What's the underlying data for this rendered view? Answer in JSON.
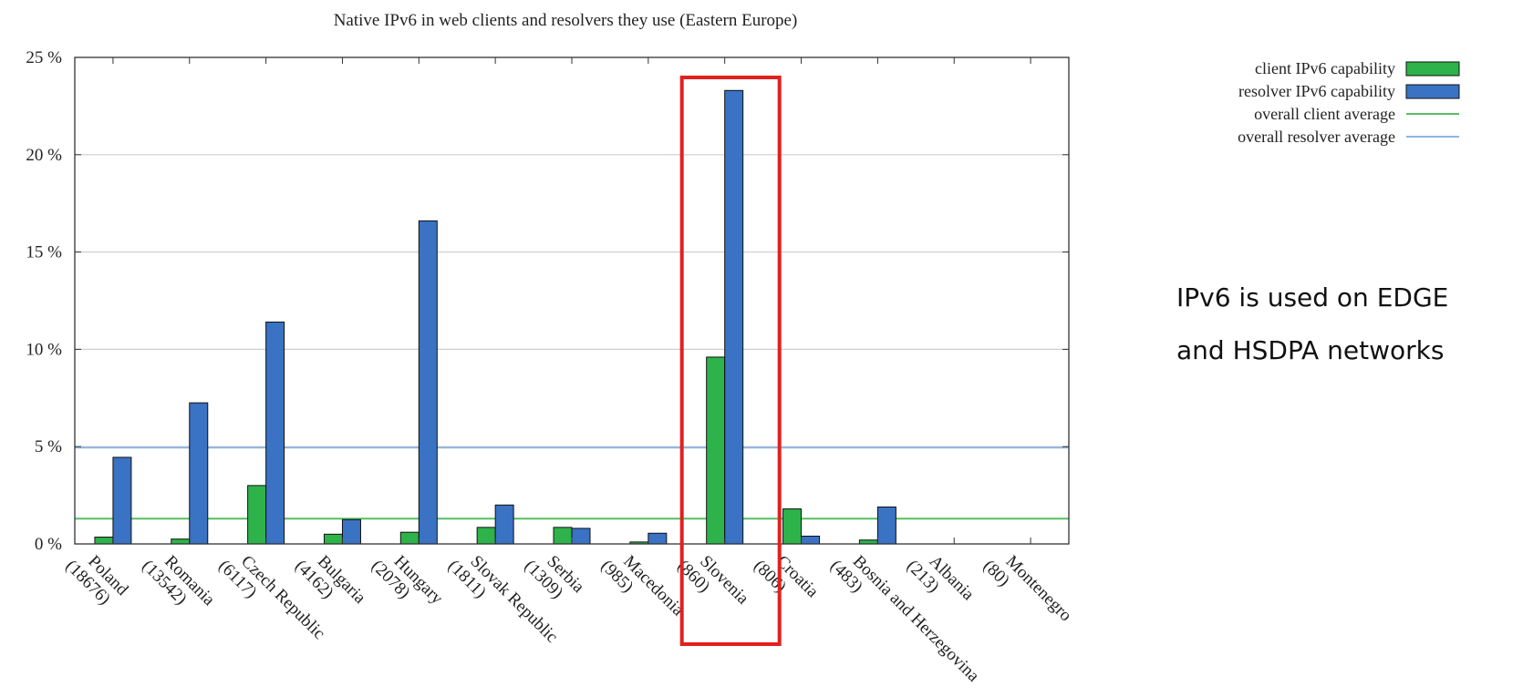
{
  "chart_data": {
    "type": "bar",
    "title": "Native IPv6 in web clients and resolvers they use (Eastern Europe)",
    "xlabel": "",
    "ylabel": "",
    "ylim": [
      0,
      25
    ],
    "yticks": [
      0,
      5,
      10,
      15,
      20,
      25
    ],
    "ytick_labels": [
      "0 %",
      "5 %",
      "10 %",
      "15 %",
      "20 %",
      "25 %"
    ],
    "categories": [
      [
        "Poland",
        "(18676)"
      ],
      [
        "Romania",
        "(13542)"
      ],
      [
        "Czech Republic",
        "(6117)"
      ],
      [
        "Bulgaria",
        "(4162)"
      ],
      [
        "Hungary",
        "(2078)"
      ],
      [
        "Slovak Republic",
        "(1811)"
      ],
      [
        "Serbia",
        "(1309)"
      ],
      [
        "Macedonia",
        "(985)"
      ],
      [
        "Slovenia",
        "(860)"
      ],
      [
        "Croatia",
        "(806)"
      ],
      [
        "Bosnia and Herzegovina",
        "(483)"
      ],
      [
        "Albania",
        "(213)"
      ],
      [
        "Montenegro",
        "(80)"
      ]
    ],
    "series": [
      {
        "name": "client IPv6 capability",
        "color": "#2db34a",
        "values": [
          0.35,
          0.25,
          3.0,
          0.5,
          0.6,
          0.85,
          0.85,
          0.1,
          9.6,
          1.8,
          0.2,
          0,
          0
        ]
      },
      {
        "name": "resolver IPv6 capability",
        "color": "#3a72c4",
        "values": [
          4.45,
          7.25,
          11.4,
          1.25,
          16.6,
          2.0,
          0.8,
          0.55,
          23.3,
          0.4,
          1.9,
          0,
          0
        ]
      }
    ],
    "reference_lines": [
      {
        "name": "overall client average",
        "value": 1.3,
        "color": "#55c060"
      },
      {
        "name": "overall resolver average",
        "value": 4.95,
        "color": "#8fb4e0"
      }
    ],
    "grid": true,
    "legend_position": "top-right",
    "highlight": {
      "category_index": 8,
      "color": "#e0211f"
    }
  },
  "annotation": {
    "lines": [
      "IPv6 is used on EDGE",
      "and HSDPA networks"
    ]
  }
}
